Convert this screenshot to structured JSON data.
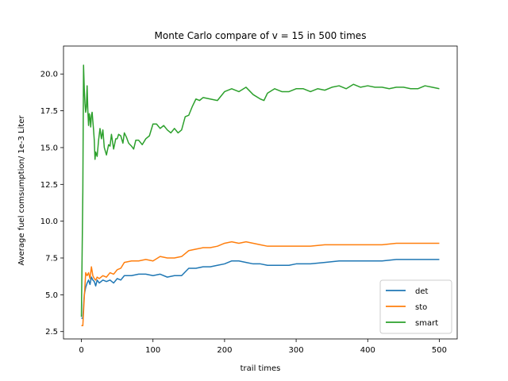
{
  "chart_data": {
    "type": "line",
    "title": "Monte Carlo compare of v = 15 in 500 times",
    "xlabel": "trail times",
    "ylabel": "Average fuel comsumption/ 1e-3 Liter",
    "xlim": [
      -25,
      525
    ],
    "ylim": [
      2.0,
      21.9
    ],
    "xticks": [
      0,
      100,
      200,
      300,
      400,
      500
    ],
    "xtick_labels": [
      "0",
      "100",
      "200",
      "300",
      "400",
      "500"
    ],
    "yticks": [
      2.5,
      5.0,
      7.5,
      10.0,
      12.5,
      15.0,
      17.5,
      20.0
    ],
    "ytick_labels": [
      "2.5",
      "5.0",
      "7.5",
      "10.0",
      "12.5",
      "15.0",
      "17.5",
      "20.0"
    ],
    "grid": false,
    "legend": "lower-right",
    "series": [
      {
        "name": "det",
        "color": "#1f77b4",
        "x": [
          0,
          2,
          4,
          6,
          8,
          10,
          12,
          14,
          16,
          18,
          20,
          22,
          25,
          30,
          35,
          40,
          45,
          50,
          55,
          60,
          70,
          80,
          90,
          100,
          110,
          120,
          130,
          140,
          150,
          160,
          170,
          180,
          190,
          200,
          210,
          220,
          230,
          240,
          250,
          260,
          270,
          280,
          290,
          300,
          320,
          340,
          360,
          380,
          400,
          420,
          440,
          460,
          480,
          500
        ],
        "y": [
          3.4,
          3.4,
          5.0,
          5.5,
          5.8,
          6.0,
          5.7,
          6.2,
          6.0,
          5.9,
          5.6,
          6.0,
          5.8,
          6.0,
          5.9,
          6.0,
          5.8,
          6.1,
          6.0,
          6.3,
          6.3,
          6.4,
          6.4,
          6.3,
          6.4,
          6.2,
          6.3,
          6.3,
          6.8,
          6.8,
          6.9,
          6.9,
          7.0,
          7.1,
          7.3,
          7.3,
          7.2,
          7.1,
          7.1,
          7.0,
          7.0,
          7.0,
          7.0,
          7.1,
          7.1,
          7.2,
          7.3,
          7.3,
          7.3,
          7.3,
          7.4,
          7.4,
          7.4,
          7.4
        ]
      },
      {
        "name": "sto",
        "color": "#ff7f0e",
        "x": [
          0,
          2,
          4,
          6,
          8,
          10,
          12,
          14,
          16,
          18,
          20,
          22,
          25,
          30,
          35,
          40,
          45,
          50,
          55,
          60,
          70,
          80,
          90,
          100,
          110,
          120,
          130,
          140,
          150,
          160,
          170,
          180,
          190,
          200,
          210,
          220,
          230,
          240,
          250,
          260,
          270,
          280,
          290,
          300,
          320,
          340,
          360,
          380,
          400,
          420,
          440,
          460,
          480,
          500
        ],
        "y": [
          2.9,
          2.9,
          4.8,
          6.5,
          6.3,
          6.5,
          6.1,
          6.9,
          6.3,
          6.1,
          6.0,
          6.2,
          6.1,
          6.3,
          6.2,
          6.5,
          6.4,
          6.7,
          6.8,
          7.2,
          7.3,
          7.3,
          7.4,
          7.3,
          7.6,
          7.5,
          7.5,
          7.6,
          8.0,
          8.1,
          8.2,
          8.2,
          8.3,
          8.5,
          8.6,
          8.5,
          8.6,
          8.5,
          8.4,
          8.3,
          8.3,
          8.3,
          8.3,
          8.3,
          8.3,
          8.4,
          8.4,
          8.4,
          8.4,
          8.4,
          8.5,
          8.5,
          8.5,
          8.5
        ]
      },
      {
        "name": "smart",
        "color": "#2ca02c",
        "x": [
          0,
          2,
          3,
          4,
          5,
          6,
          7,
          8,
          9,
          10,
          11,
          12,
          13,
          14,
          15,
          16,
          17,
          18,
          19,
          20,
          22,
          24,
          26,
          28,
          30,
          32,
          35,
          38,
          40,
          42,
          45,
          48,
          50,
          52,
          55,
          58,
          60,
          63,
          66,
          70,
          73,
          76,
          80,
          85,
          90,
          95,
          100,
          105,
          110,
          115,
          120,
          125,
          130,
          135,
          140,
          145,
          150,
          155,
          160,
          165,
          170,
          180,
          190,
          200,
          210,
          220,
          230,
          240,
          250,
          255,
          260,
          270,
          280,
          290,
          300,
          310,
          320,
          330,
          340,
          350,
          360,
          370,
          380,
          390,
          400,
          410,
          420,
          430,
          440,
          450,
          460,
          470,
          480,
          490,
          500
        ],
        "y": [
          3.5,
          12.0,
          20.6,
          19.0,
          18.0,
          17.4,
          17.8,
          19.2,
          17.5,
          16.5,
          17.3,
          17.0,
          16.4,
          17.2,
          17.4,
          16.8,
          16.2,
          15.5,
          14.2,
          14.7,
          14.4,
          15.5,
          16.3,
          15.6,
          16.2,
          15.0,
          14.5,
          15.2,
          15.1,
          15.9,
          14.9,
          15.6,
          15.6,
          15.9,
          15.8,
          15.3,
          16.0,
          15.7,
          15.3,
          15.1,
          14.9,
          15.5,
          15.5,
          15.2,
          15.6,
          15.8,
          16.6,
          16.6,
          16.3,
          16.5,
          16.2,
          16.0,
          16.3,
          16.0,
          16.2,
          17.1,
          17.2,
          17.8,
          18.3,
          18.2,
          18.4,
          18.3,
          18.2,
          18.8,
          19.0,
          18.8,
          19.1,
          18.6,
          18.3,
          18.2,
          18.7,
          19.0,
          18.8,
          18.8,
          19.0,
          19.0,
          18.8,
          19.0,
          18.9,
          19.1,
          19.2,
          19.0,
          19.3,
          19.1,
          19.2,
          19.1,
          19.1,
          19.0,
          19.1,
          19.1,
          19.0,
          19.0,
          19.2,
          19.1,
          19.0
        ]
      }
    ]
  }
}
